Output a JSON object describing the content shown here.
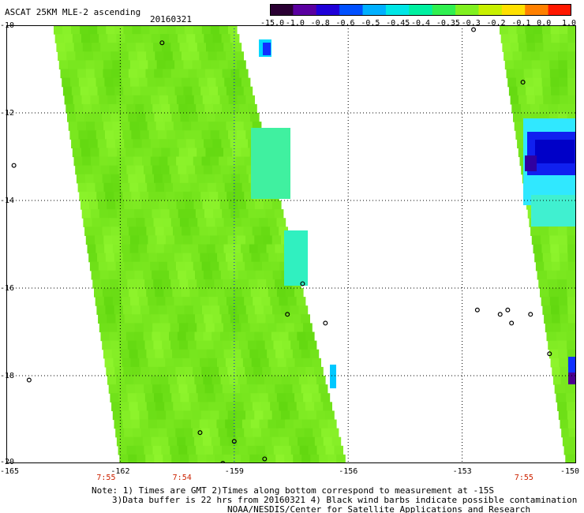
{
  "header": {
    "title": "ASCAT 25KM MLE-2 ascending",
    "date": "20160321"
  },
  "colorbar": {
    "labels": [
      "-15.0",
      "-1.0",
      "-0.8",
      "-0.6",
      "-0.5",
      "-0.45",
      "-0.4",
      "-0.35",
      "-0.3",
      "-0.2",
      "-0.1",
      "0.0",
      "1.0"
    ],
    "colors": [
      "#2a0033",
      "#5a00a0",
      "#2000d8",
      "#0050ff",
      "#00b0ff",
      "#00e6e6",
      "#00f0a0",
      "#30f050",
      "#80f020",
      "#c8f000",
      "#ffe000",
      "#ff8000",
      "#ff1800"
    ]
  },
  "map": {
    "lat_labels": [
      "-10",
      "-12",
      "-14",
      "-16",
      "-18",
      "-20"
    ],
    "lon_labels": [
      "-165",
      "-162",
      "-159",
      "-156",
      "-153",
      "-150"
    ],
    "lon_range": [
      -165,
      -150
    ],
    "lat_range": [
      -10,
      -20
    ],
    "time_labels": [
      {
        "text": "7:55",
        "lon": -162
      },
      {
        "text": "7:54",
        "lon": -160
      },
      {
        "text": "7:55",
        "lon": -151
      }
    ],
    "colors": {
      "swath_green": "#7ef02a",
      "grid_black": "#000000",
      "grid_blue": "#0000ff",
      "time_red": "#cc2200"
    }
  },
  "footer": {
    "line1": "Note: 1) Times are GMT 2)Times along bottom correspond to measurement at -15S",
    "line2": "3)Data buffer is 22 hrs from 20160321 4) Black wind barbs indicate possible contamination",
    "line3": "NOAA/NESDIS/Center for Satellite Applications and Research"
  }
}
